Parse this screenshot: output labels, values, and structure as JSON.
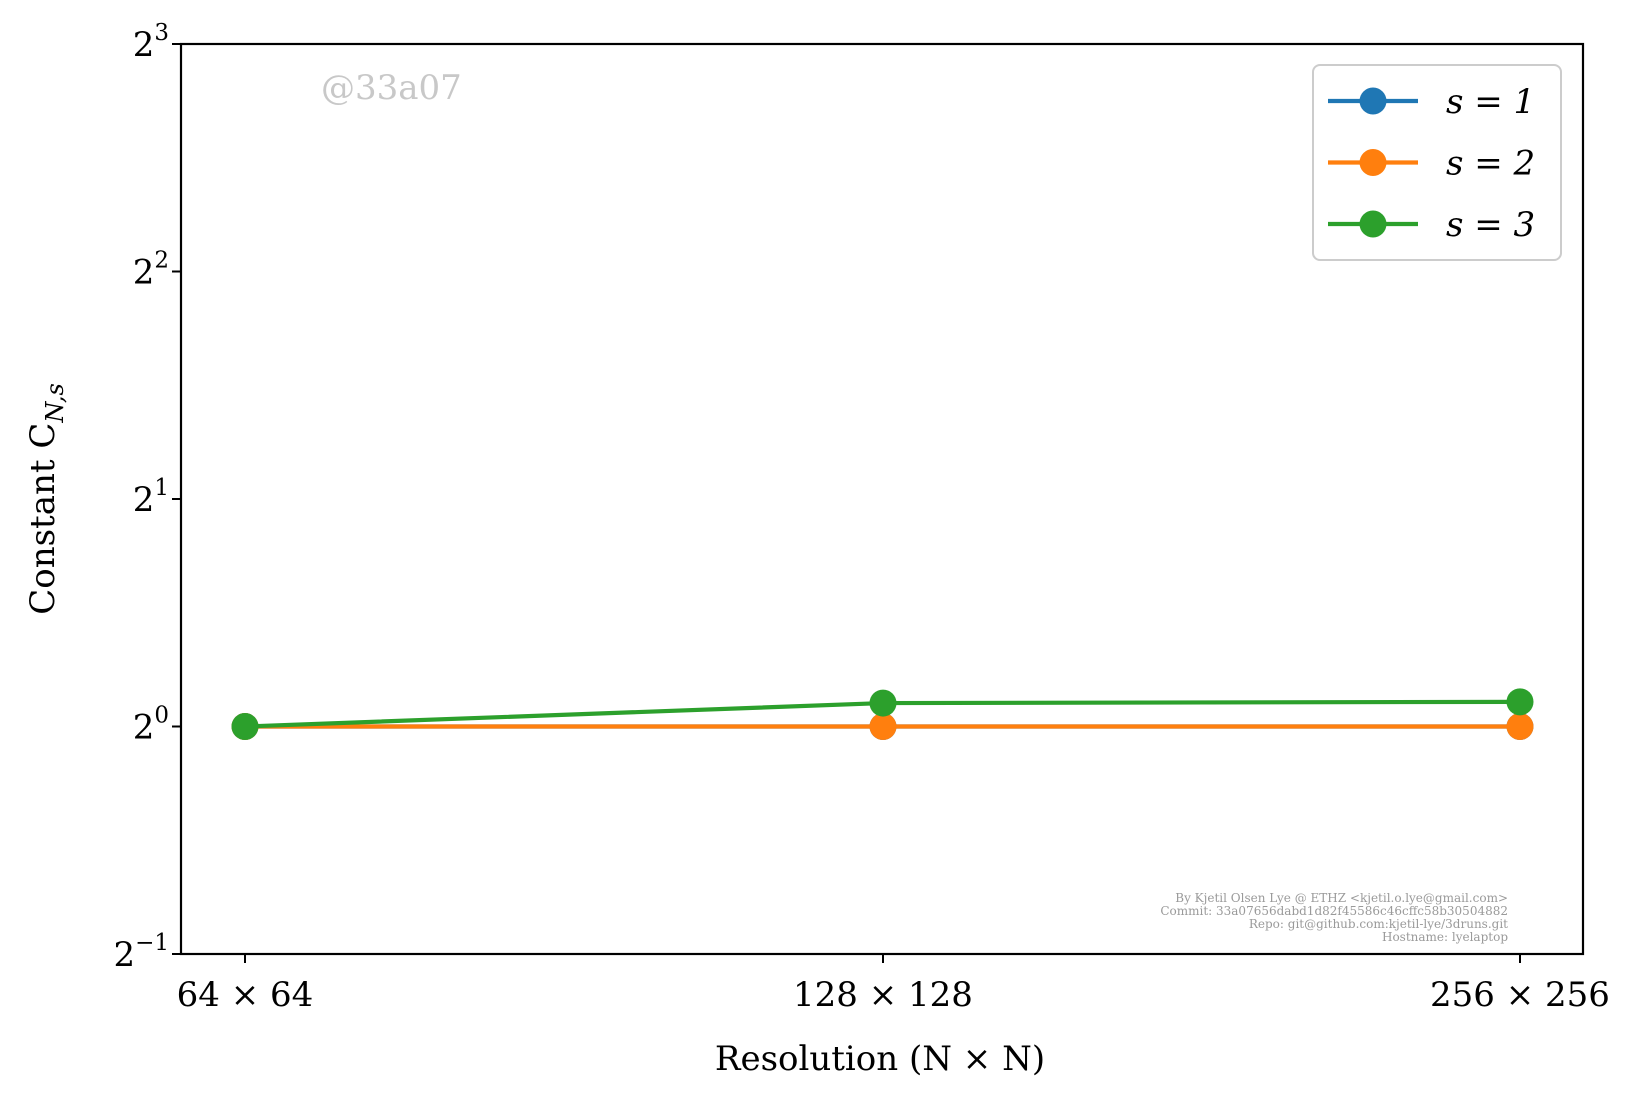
{
  "chart_data": {
    "type": "line",
    "xlabel": "Resolution (N × N)",
    "ylabel": "Constant C",
    "ylabel_sub": "N,s",
    "categories": [
      "64 × 64",
      "128 × 128",
      "256 × 256"
    ],
    "y_scale": "log2",
    "ylim": [
      0.5,
      8
    ],
    "y_ticks": [
      {
        "value": 0.5,
        "base": "2",
        "exp": "−1"
      },
      {
        "value": 1,
        "base": "2",
        "exp": "0"
      },
      {
        "value": 2,
        "base": "2",
        "exp": "1"
      },
      {
        "value": 4,
        "base": "2",
        "exp": "2"
      },
      {
        "value": 8,
        "base": "2",
        "exp": "3"
      }
    ],
    "series": [
      {
        "name": "s = 1",
        "color": "#1f77b4",
        "values": [
          1.0,
          1.0,
          1.0
        ]
      },
      {
        "name": "s = 2",
        "color": "#ff7f0e",
        "values": [
          1.0,
          1.0,
          1.0
        ]
      },
      {
        "name": "s = 3",
        "color": "#2ca02c",
        "values": [
          1.0,
          1.074,
          1.078
        ]
      }
    ],
    "legend_position": "top-right",
    "grid": false,
    "watermark": "@33a07",
    "footer_lines": [
      "By Kjetil Olsen Lye @ ETHZ <kjetil.o.lye@gmail.com>",
      "Commit: 33a07656dabd1d82f45586c46cffc58b30504882",
      "Repo: git@github.com:kjetil-lye/3druns.git",
      "Hostname: lyelaptop"
    ]
  }
}
